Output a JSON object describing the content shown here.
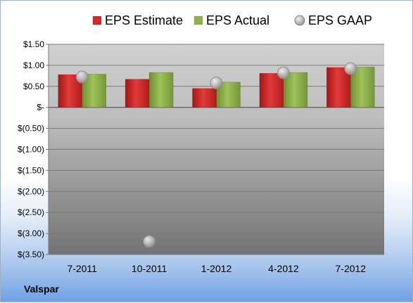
{
  "company": "Valspar",
  "legend": [
    {
      "label": "EPS Estimate",
      "marker": "square",
      "color": "#d22b2b"
    },
    {
      "label": "EPS Actual",
      "marker": "square",
      "color": "#8fb04a"
    },
    {
      "label": "EPS GAAP",
      "marker": "circle",
      "color": "#b4b4b4"
    }
  ],
  "chart_data": {
    "type": "bar",
    "categories": [
      "7-2011",
      "10-2011",
      "1-2012",
      "4-2012",
      "7-2012"
    ],
    "series": [
      {
        "name": "EPS Estimate",
        "type": "bar",
        "color": "#d22b2b",
        "values": [
          0.78,
          0.67,
          0.45,
          0.81,
          0.95
        ]
      },
      {
        "name": "EPS Actual",
        "type": "bar",
        "color": "#8fb04a",
        "values": [
          0.79,
          0.83,
          0.6,
          0.83,
          0.96
        ]
      },
      {
        "name": "EPS GAAP",
        "type": "scatter",
        "color": "#b4b4b4",
        "values": [
          0.72,
          -3.19,
          0.58,
          0.82,
          0.92
        ]
      }
    ],
    "ylim": [
      -3.5,
      1.5
    ],
    "yticks": [
      1.5,
      1.0,
      0.5,
      0,
      -0.5,
      -1.0,
      -1.5,
      -2.0,
      -2.5,
      -3.0,
      -3.5
    ],
    "ytick_labels": [
      "$1.50",
      "$1.00",
      "$0.50",
      "$-",
      "$(0.50)",
      "$(1.00)",
      "$(1.50)",
      "$(2.00)",
      "$(2.50)",
      "$(3.00)",
      "$(3.50)"
    ],
    "grid": true,
    "legend_position": "top"
  }
}
